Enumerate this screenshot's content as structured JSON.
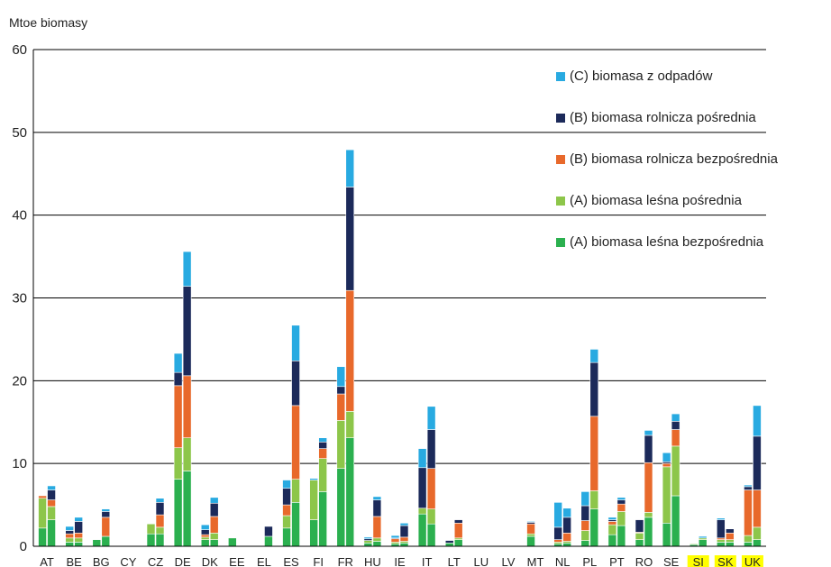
{
  "chart_data": {
    "type": "bar",
    "stacked": true,
    "bars_per_category": 2,
    "ylabel": "Mtoe biomasy",
    "ylim": [
      0,
      60
    ],
    "yticks": [
      0,
      10,
      20,
      30,
      40,
      50,
      60
    ],
    "grid": true,
    "legend_position": "top-right",
    "categories": [
      "AT",
      "BE",
      "BG",
      "CY",
      "CZ",
      "DE",
      "DK",
      "EE",
      "EL",
      "ES",
      "FI",
      "FR",
      "HU",
      "IE",
      "IT",
      "LT",
      "LU",
      "LV",
      "MT",
      "NL",
      "PL",
      "PT",
      "RO",
      "SE",
      "SI",
      "SK",
      "UK"
    ],
    "highlighted_categories": [
      "SI",
      "SK",
      "UK"
    ],
    "highlight_color": "#ffff00",
    "series": [
      {
        "name": "(A) biomasa leśna bezpośrednia",
        "color": "#2bb04f",
        "values": [
          [
            2.2,
            3.2
          ],
          [
            0.5,
            0.5
          ],
          [
            0.8,
            1.2
          ],
          [
            0,
            0
          ],
          [
            1.5,
            1.5
          ],
          [
            8.1,
            9.1
          ],
          [
            0.8,
            0.8
          ],
          [
            1.0,
            0
          ],
          [
            0,
            1.2
          ],
          [
            2.2,
            5.3
          ],
          [
            3.2,
            6.6
          ],
          [
            9.4,
            13.1
          ],
          [
            0.4,
            0.6
          ],
          [
            0.3,
            0.4
          ],
          [
            3.9,
            2.7
          ],
          [
            0.4,
            0.8
          ],
          [
            0,
            0
          ],
          [
            0,
            0
          ],
          [
            1.2,
            0
          ],
          [
            0.3,
            0.4
          ],
          [
            0.7,
            4.5
          ],
          [
            1.4,
            2.5
          ],
          [
            0.8,
            3.5
          ],
          [
            2.8,
            6.1
          ],
          [
            0.2,
            0.8
          ],
          [
            0.5,
            0.5
          ],
          [
            0.5,
            0.8
          ]
        ]
      },
      {
        "name": "(A) biomasa leśna pośrednia",
        "color": "#8dc64a",
        "values": [
          [
            3.6,
            1.6
          ],
          [
            0.5,
            0.5
          ],
          [
            0,
            0
          ],
          [
            0,
            0
          ],
          [
            1.2,
            0.8
          ],
          [
            3.8,
            4.0
          ],
          [
            0.3,
            0.8
          ],
          [
            0,
            0
          ],
          [
            0,
            0
          ],
          [
            1.5,
            2.8
          ],
          [
            4.8,
            4.0
          ],
          [
            5.8,
            3.2
          ],
          [
            0.3,
            0.4
          ],
          [
            0.2,
            0.2
          ],
          [
            0.7,
            1.8
          ],
          [
            0,
            0.2
          ],
          [
            0,
            0
          ],
          [
            0,
            0
          ],
          [
            0.3,
            0
          ],
          [
            0.2,
            0.2
          ],
          [
            1.2,
            2.2
          ],
          [
            1.2,
            1.7
          ],
          [
            0.8,
            0.6
          ],
          [
            6.8,
            6.0
          ],
          [
            0.1,
            0.2
          ],
          [
            0.3,
            0.3
          ],
          [
            0.8,
            1.5
          ]
        ]
      },
      {
        "name": "(B) biomasa rolnicza bezpośrednia",
        "color": "#e8692b",
        "values": [
          [
            0.3,
            0.8
          ],
          [
            0.5,
            0.6
          ],
          [
            0,
            2.3
          ],
          [
            0,
            0
          ],
          [
            0,
            1.5
          ],
          [
            7.5,
            7.5
          ],
          [
            0.3,
            2.0
          ],
          [
            0,
            0
          ],
          [
            0,
            0
          ],
          [
            1.3,
            8.9
          ],
          [
            0,
            1.2
          ],
          [
            3.2,
            14.6
          ],
          [
            0,
            2.6
          ],
          [
            0.4,
            0.5
          ],
          [
            0,
            4.9
          ],
          [
            0,
            1.8
          ],
          [
            0,
            0
          ],
          [
            0,
            0
          ],
          [
            1.2,
            0
          ],
          [
            0.3,
            1.0
          ],
          [
            1.2,
            9.0
          ],
          [
            0.4,
            0.9
          ],
          [
            0.1,
            6.0
          ],
          [
            0.4,
            2.0
          ],
          [
            0,
            0
          ],
          [
            0.2,
            0.8
          ],
          [
            5.5,
            4.5
          ]
        ]
      },
      {
        "name": "(B) biomasa rolnicza pośrednia",
        "color": "#1c2a5a",
        "values": [
          [
            0,
            1.2
          ],
          [
            0.4,
            1.4
          ],
          [
            0,
            0.7
          ],
          [
            0,
            0
          ],
          [
            0,
            1.5
          ],
          [
            1.6,
            10.8
          ],
          [
            0.6,
            1.6
          ],
          [
            0,
            0
          ],
          [
            0,
            1.2
          ],
          [
            2.0,
            5.4
          ],
          [
            0,
            0.8
          ],
          [
            0.9,
            12.5
          ],
          [
            0.2,
            2.0
          ],
          [
            0.1,
            1.4
          ],
          [
            4.9,
            4.7
          ],
          [
            0.3,
            0.4
          ],
          [
            0,
            0
          ],
          [
            0,
            0
          ],
          [
            0.2,
            0
          ],
          [
            1.5,
            1.9
          ],
          [
            1.8,
            6.5
          ],
          [
            0.2,
            0.5
          ],
          [
            1.5,
            3.3
          ],
          [
            0.2,
            1.0
          ],
          [
            0,
            0
          ],
          [
            2.2,
            0.5
          ],
          [
            0.4,
            6.5
          ]
        ]
      },
      {
        "name": "(C) biomasa z odpadów",
        "color": "#28aae1",
        "values": [
          [
            0,
            0.5
          ],
          [
            0.5,
            0.5
          ],
          [
            0,
            0.3
          ],
          [
            0,
            0
          ],
          [
            0,
            0.5
          ],
          [
            2.3,
            4.2
          ],
          [
            0.6,
            0.7
          ],
          [
            0,
            0
          ],
          [
            0,
            0
          ],
          [
            1.0,
            4.3
          ],
          [
            0.2,
            0.5
          ],
          [
            2.4,
            4.5
          ],
          [
            0.2,
            0.4
          ],
          [
            0.3,
            0.3
          ],
          [
            2.3,
            2.8
          ],
          [
            0,
            0
          ],
          [
            0,
            0
          ],
          [
            0,
            0
          ],
          [
            0.1,
            0
          ],
          [
            3.0,
            1.1
          ],
          [
            1.7,
            1.6
          ],
          [
            0.3,
            0.3
          ],
          [
            0,
            0.6
          ],
          [
            1.1,
            0.9
          ],
          [
            0,
            0.2
          ],
          [
            0.2,
            0
          ],
          [
            0.2,
            3.7
          ]
        ]
      }
    ]
  },
  "legend": {
    "items": [
      {
        "label": "(C) biomasa z odpadów",
        "color": "#28aae1"
      },
      {
        "label": "(B) biomasa rolnicza pośrednia",
        "color": "#1c2a5a"
      },
      {
        "label": "(B) biomasa rolnicza bezpośrednia",
        "color": "#e8692b"
      },
      {
        "label": "(A) biomasa leśna pośrednia",
        "color": "#8dc64a"
      },
      {
        "label": "(A) biomasa leśna bezpośrednia",
        "color": "#2bb04f"
      }
    ]
  }
}
